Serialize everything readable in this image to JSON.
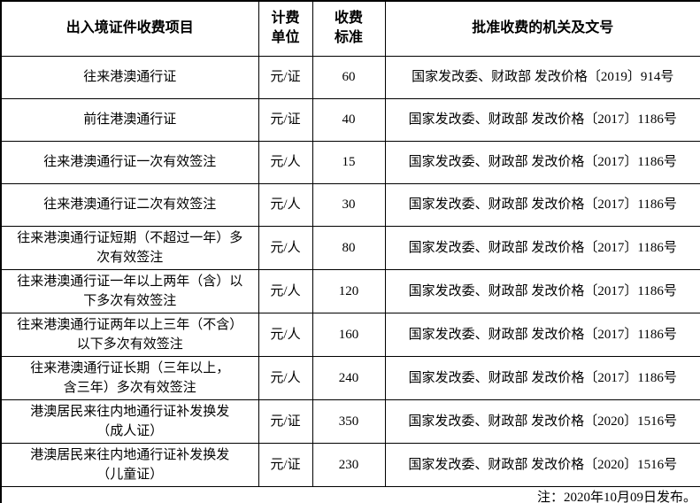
{
  "table": {
    "headers": {
      "item": "出入境证件收费项目",
      "unit": "计费\n单位",
      "fee": "收费\n标准",
      "authority": "批准收费的机关及文号"
    },
    "rows": [
      {
        "item": "往来港澳通行证",
        "unit": "元/证",
        "fee": "60",
        "authority": "国家发改委、财政部 发改价格〔2019〕914号"
      },
      {
        "item": "前往港澳通行证",
        "unit": "元/证",
        "fee": "40",
        "authority": "国家发改委、财政部 发改价格〔2017〕1186号"
      },
      {
        "item": "往来港澳通行证一次有效签注",
        "unit": "元/人",
        "fee": "15",
        "authority": "国家发改委、财政部 发改价格〔2017〕1186号"
      },
      {
        "item": "往来港澳通行证二次有效签注",
        "unit": "元/人",
        "fee": "30",
        "authority": "国家发改委、财政部 发改价格〔2017〕1186号"
      },
      {
        "item": "往来港澳通行证短期（不超过一年）多\n次有效签注",
        "unit": "元/人",
        "fee": "80",
        "authority": "国家发改委、财政部 发改价格〔2017〕1186号"
      },
      {
        "item": "往来港澳通行证一年以上两年（含）以\n下多次有效签注",
        "unit": "元/人",
        "fee": "120",
        "authority": "国家发改委、财政部 发改价格〔2017〕1186号"
      },
      {
        "item": "往来港澳通行证两年以上三年（不含）\n以下多次有效签注",
        "unit": "元/人",
        "fee": "160",
        "authority": "国家发改委、财政部 发改价格〔2017〕1186号"
      },
      {
        "item": "往来港澳通行证长期（三年以上，\n含三年）多次有效签注",
        "unit": "元/人",
        "fee": "240",
        "authority": "国家发改委、财政部 发改价格〔2017〕1186号"
      },
      {
        "item": "港澳居民来往内地通行证补发换发\n（成人证）",
        "unit": "元/证",
        "fee": "350",
        "authority": "国家发改委、财政部 发改价格〔2020〕1516号"
      },
      {
        "item": "港澳居民来往内地通行证补发换发\n（儿童证）",
        "unit": "元/证",
        "fee": "230",
        "authority": "国家发改委、财政部 发改价格〔2020〕1516号"
      }
    ],
    "note": "注：2020年10月09日发布。",
    "colors": {
      "border": "#000000",
      "text": "#000000",
      "background": "#ffffff"
    }
  }
}
